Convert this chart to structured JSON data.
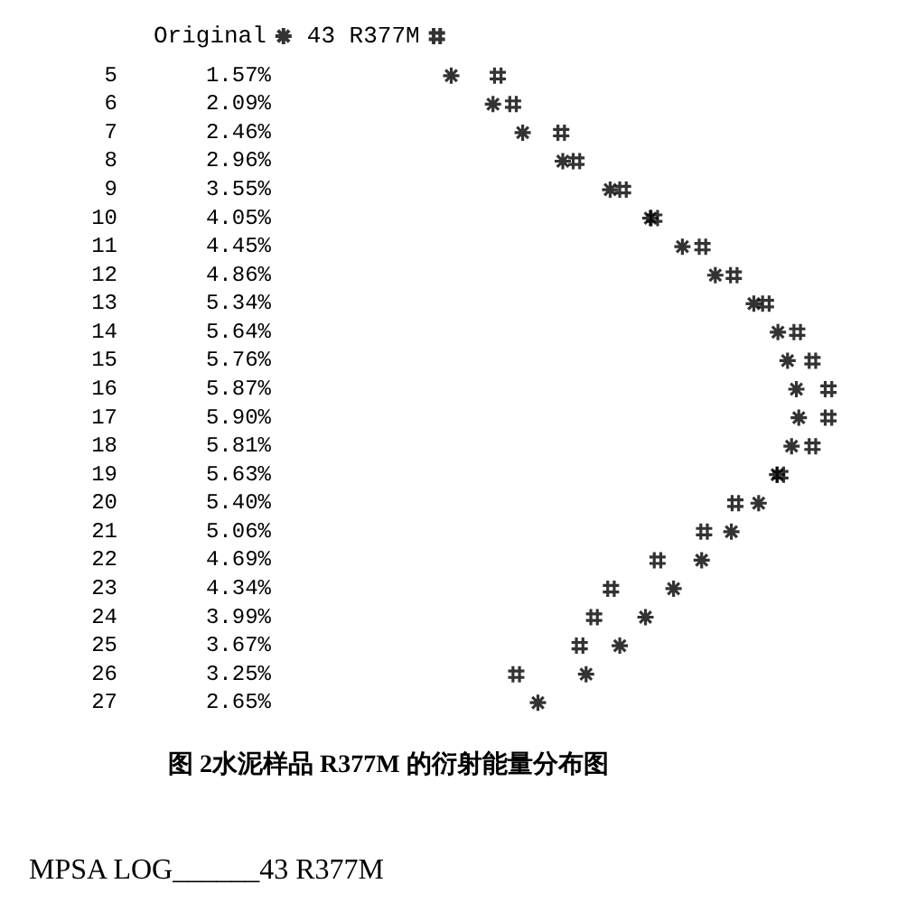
{
  "chart_data": {
    "type": "scatter",
    "orientation": "horizontal",
    "title": "图 2水泥样品 R377M 的衍射能量分布图",
    "annotations": [
      "MPSA LOG______43 R377M"
    ],
    "categories": [
      "5",
      "6",
      "7",
      "8",
      "9",
      "10",
      "11",
      "12",
      "13",
      "14",
      "15",
      "16",
      "17",
      "18",
      "19",
      "20",
      "21",
      "22",
      "23",
      "24",
      "25",
      "26",
      "27"
    ],
    "tick_labels": "y",
    "legend": "top",
    "series": [
      {
        "name": "Original",
        "color": "#000000",
        "marker": "cross",
        "values": [
          1.57,
          2.09,
          2.46,
          2.96,
          3.55,
          4.05,
          4.45,
          4.86,
          5.34,
          5.64,
          5.76,
          5.87,
          5.9,
          5.81,
          5.63,
          5.4,
          5.06,
          4.69,
          4.34,
          3.99,
          3.67,
          3.25,
          2.65
        ],
        "value_labels": [
          "1.57%",
          "2.09%",
          "2.46%",
          "2.96%",
          "3.55%",
          "4.05%",
          "4.45%",
          "4.86%",
          "5.34%",
          "5.64%",
          "5.76%",
          "5.87%",
          "5.90%",
          "5.81%",
          "5.63%",
          "5.40%",
          "5.06%",
          "4.69%",
          "4.34%",
          "3.99%",
          "3.67%",
          "3.25%",
          "2.65%"
        ]
      },
      {
        "name": "43 R377M",
        "color": "#000000",
        "marker": "cross",
        "values": [
          2.15,
          2.34,
          2.94,
          3.13,
          3.71,
          4.1,
          4.7,
          5.09,
          5.49,
          5.88,
          6.07,
          6.27,
          6.27,
          6.07,
          5.67,
          5.11,
          4.72,
          4.14,
          3.56,
          3.35,
          3.17,
          2.38,
          null
        ]
      }
    ]
  }
}
